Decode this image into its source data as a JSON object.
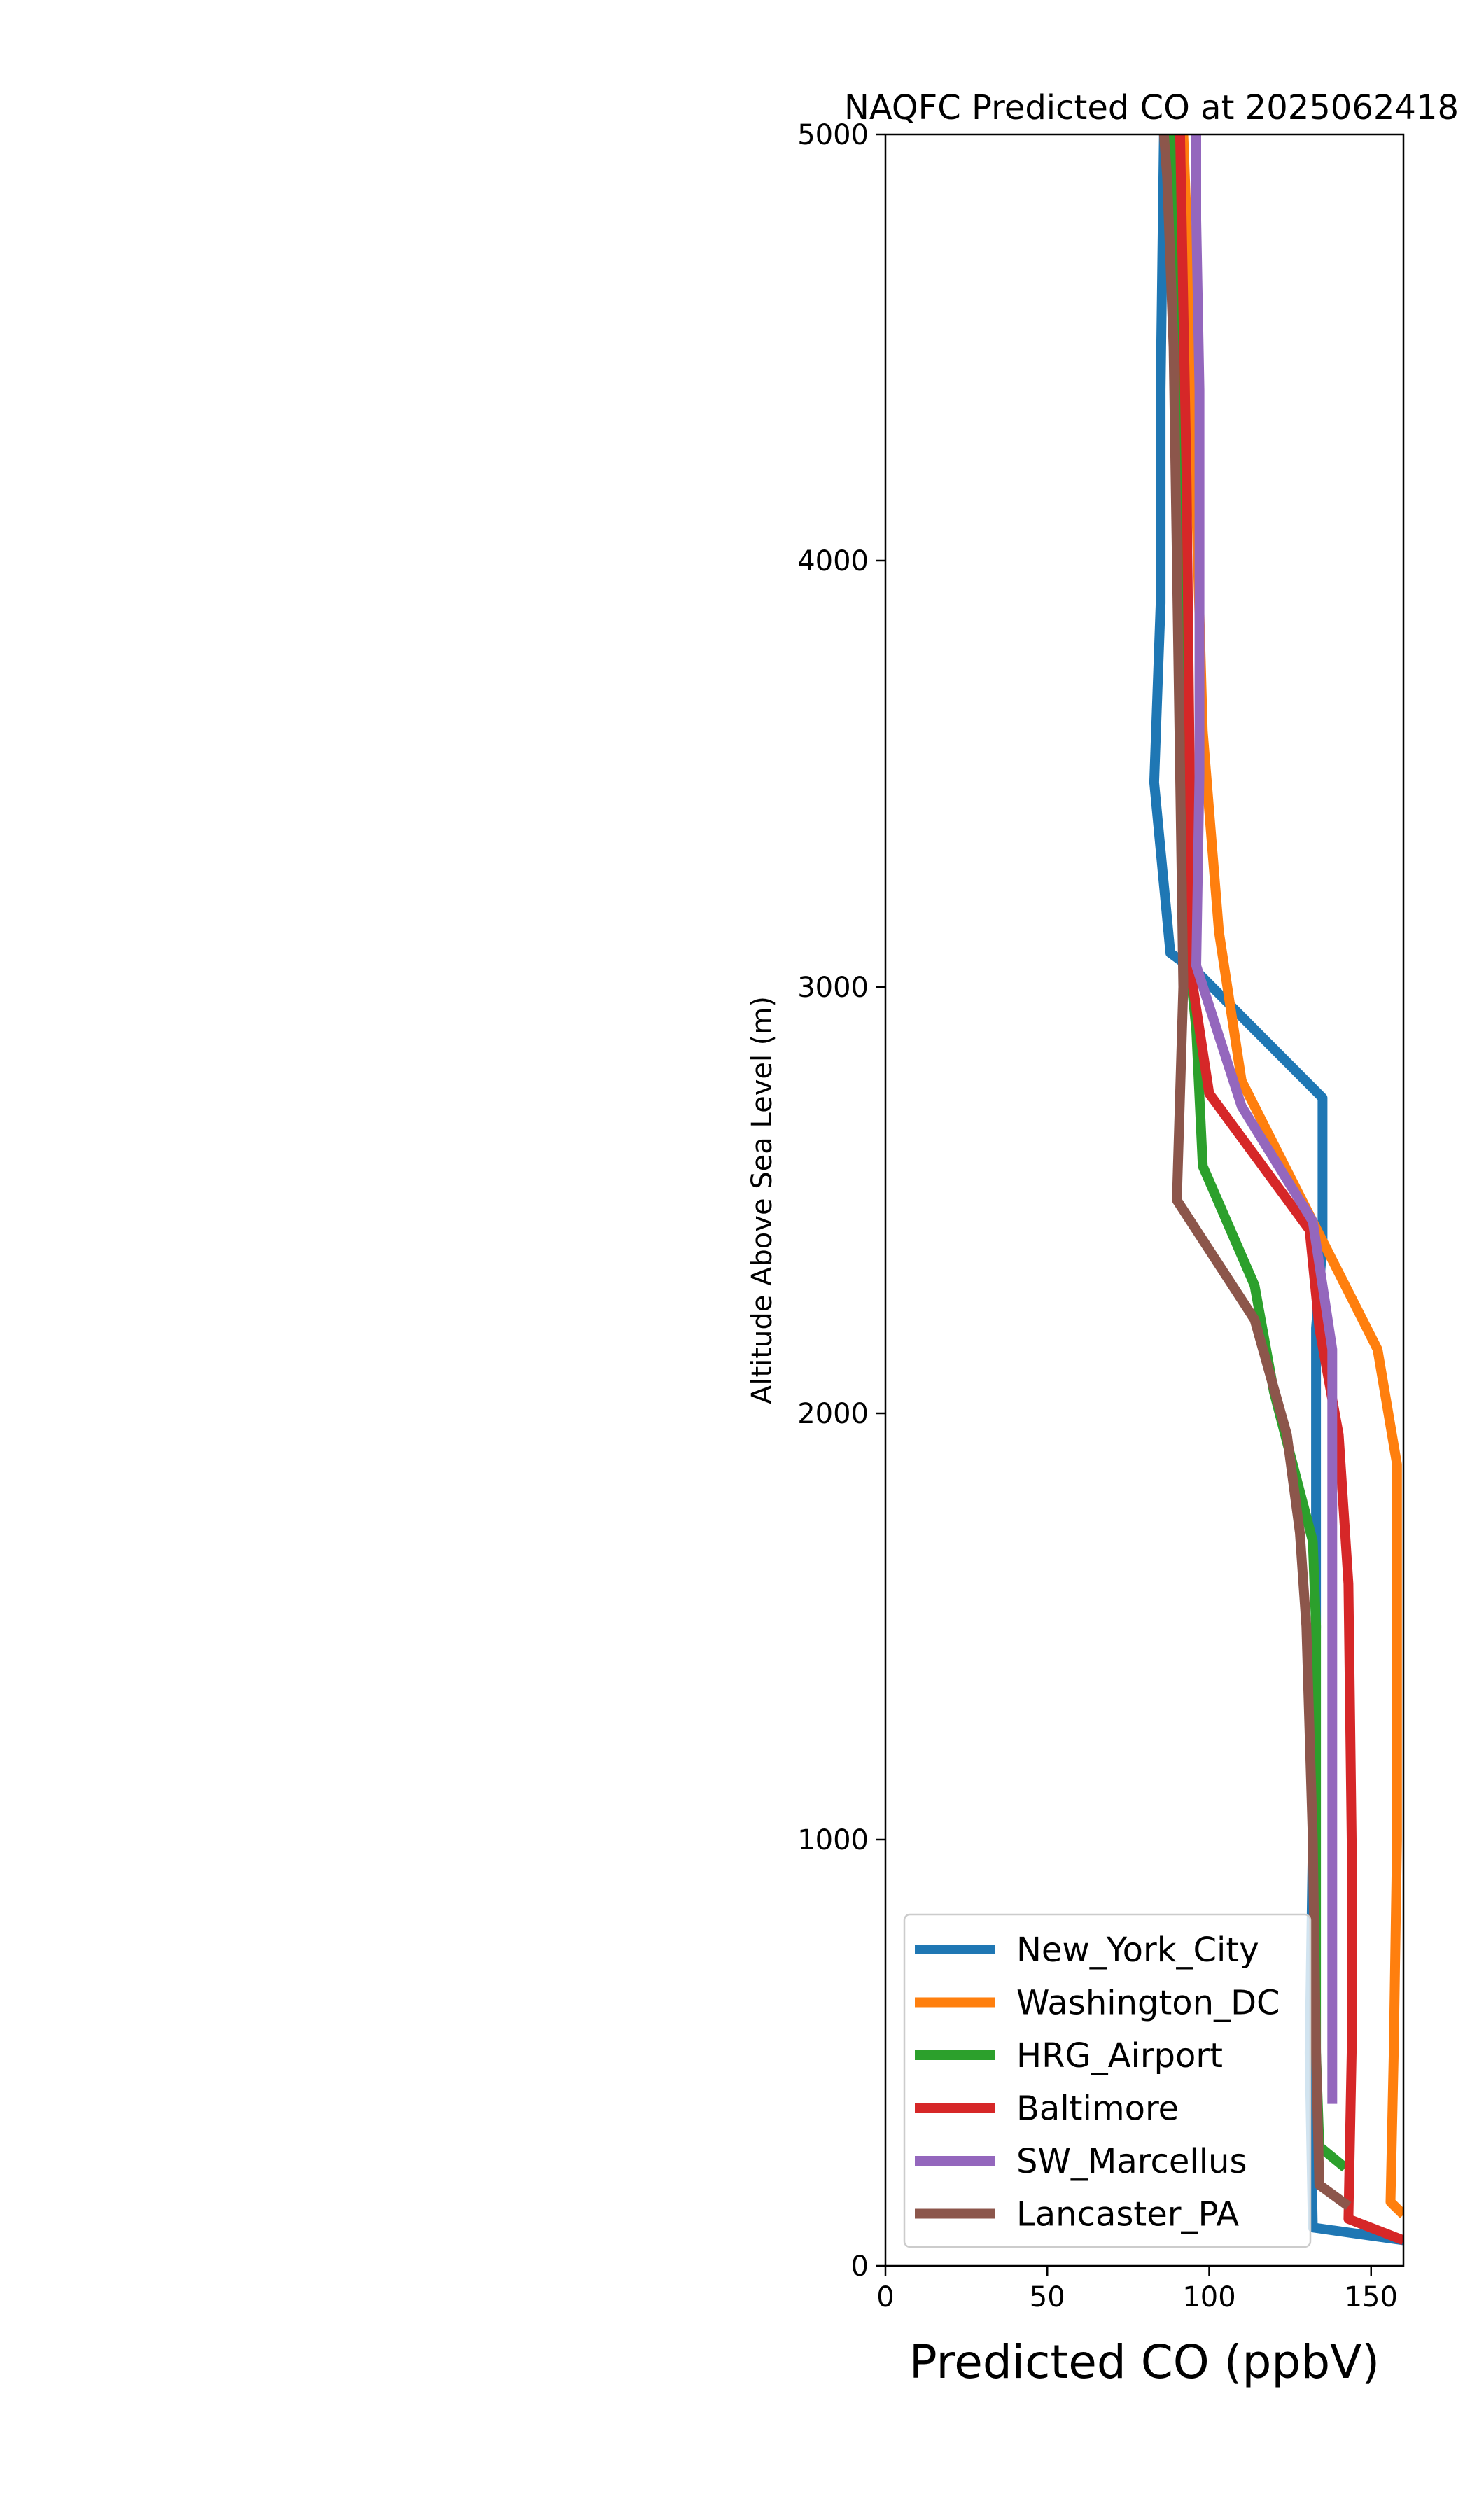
{
  "chart_data": {
    "type": "line",
    "title": "NAQFC Predicted CO at 2025062418",
    "xlabel": "Predicted CO (ppbV)",
    "ylabel": "Altitude Above Sea Level (m)",
    "xlim": [
      0,
      160
    ],
    "ylim": [
      0,
      5000
    ],
    "xticks": [
      0,
      50,
      100,
      150
    ],
    "yticks": [
      0,
      1000,
      2000,
      3000,
      4000,
      5000
    ],
    "grid": false,
    "legend_position": "lower-left",
    "series": [
      {
        "name": "New_York_City",
        "color": "#1f77b4",
        "points": [
          [
            160,
            60
          ],
          [
            132,
            90
          ],
          [
            131,
            500
          ],
          [
            132,
            1000
          ],
          [
            133,
            1500
          ],
          [
            133,
            2000
          ],
          [
            133,
            2200
          ],
          [
            135,
            2400
          ],
          [
            135,
            2740
          ],
          [
            97,
            3030
          ],
          [
            88,
            3080
          ],
          [
            83,
            3480
          ],
          [
            85,
            3900
          ],
          [
            85,
            4400
          ],
          [
            86,
            5000
          ]
        ]
      },
      {
        "name": "Washington_DC",
        "color": "#ff7f0e",
        "points": [
          [
            160,
            120
          ],
          [
            156,
            150
          ],
          [
            157,
            500
          ],
          [
            158,
            1000
          ],
          [
            158,
            1600
          ],
          [
            158,
            1880
          ],
          [
            152,
            2150
          ],
          [
            132,
            2450
          ],
          [
            110,
            2780
          ],
          [
            103,
            3130
          ],
          [
            98,
            3600
          ],
          [
            95,
            4400
          ],
          [
            92,
            5000
          ]
        ]
      },
      {
        "name": "HRG_Airport",
        "color": "#2ca02c",
        "points": [
          [
            142,
            230
          ],
          [
            134,
            280
          ],
          [
            133,
            500
          ],
          [
            133,
            1000
          ],
          [
            133,
            1500
          ],
          [
            132,
            1700
          ],
          [
            120,
            2050
          ],
          [
            114,
            2300
          ],
          [
            98,
            2580
          ],
          [
            96,
            2900
          ],
          [
            92,
            3200
          ],
          [
            93,
            4000
          ],
          [
            91,
            4600
          ],
          [
            89,
            5000
          ]
        ]
      },
      {
        "name": "Baltimore",
        "color": "#d62728",
        "points": [
          [
            160,
            60
          ],
          [
            143,
            110
          ],
          [
            144,
            500
          ],
          [
            144,
            1000
          ],
          [
            143,
            1600
          ],
          [
            140,
            1950
          ],
          [
            134,
            2200
          ],
          [
            131,
            2430
          ],
          [
            100,
            2750
          ],
          [
            95,
            3000
          ],
          [
            94,
            3500
          ],
          [
            93,
            4200
          ],
          [
            91,
            5000
          ]
        ]
      },
      {
        "name": "SW_Marcellus",
        "color": "#9467bd",
        "points": [
          [
            138,
            380
          ],
          [
            138,
            700
          ],
          [
            138,
            1000
          ],
          [
            138,
            1500
          ],
          [
            138,
            2150
          ],
          [
            132,
            2450
          ],
          [
            110,
            2720
          ],
          [
            96,
            3050
          ],
          [
            97,
            3500
          ],
          [
            97,
            4400
          ],
          [
            96,
            4800
          ],
          [
            96,
            5000
          ]
        ]
      },
      {
        "name": "Lancaster_PA",
        "color": "#8c564b",
        "points": [
          [
            143,
            140
          ],
          [
            134,
            190
          ],
          [
            133,
            500
          ],
          [
            132,
            1000
          ],
          [
            130,
            1500
          ],
          [
            128,
            1720
          ],
          [
            124,
            1950
          ],
          [
            114,
            2220
          ],
          [
            90,
            2500
          ],
          [
            92,
            3000
          ],
          [
            91,
            3500
          ],
          [
            90,
            4000
          ],
          [
            89,
            4500
          ],
          [
            87,
            4900
          ],
          [
            86,
            5000
          ]
        ]
      }
    ]
  }
}
